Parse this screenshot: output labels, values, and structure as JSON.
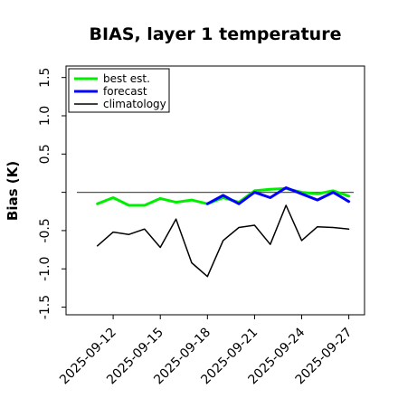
{
  "chart_data": {
    "type": "line",
    "title": "BIAS, layer 1 temperature",
    "ylabel": "Bias (K)",
    "xlabel": "",
    "ylim": [
      -1.6,
      1.65
    ],
    "yticks": [
      -1.5,
      -1.0,
      -0.5,
      0.0,
      0.5,
      1.0,
      1.5
    ],
    "ytick_labels": [
      "-1.5",
      "-1.0",
      "-0.5",
      "",
      "0.5",
      "1.0",
      "1.5"
    ],
    "xlim": [
      "2025-09-09",
      "2025-09-28"
    ],
    "xticks": [
      "2025-09-12",
      "2025-09-15",
      "2025-09-18",
      "2025-09-21",
      "2025-09-24",
      "2025-09-27"
    ],
    "xtick_labels": [
      "2025-09-12",
      "2025-09-15",
      "2025-09-18",
      "2025-09-21",
      "2025-09-24",
      "2025-09-27"
    ],
    "highlight_tick": {
      "label": "2025-09-18",
      "color": "#228b22"
    },
    "reference_line": {
      "y": 0.0,
      "color": "#555555"
    },
    "legend_position": "upper-left",
    "x": [
      "2025-09-11",
      "2025-09-12",
      "2025-09-13",
      "2025-09-14",
      "2025-09-15",
      "2025-09-16",
      "2025-09-17",
      "2025-09-18",
      "2025-09-19",
      "2025-09-20",
      "2025-09-21",
      "2025-09-22",
      "2025-09-23",
      "2025-09-24",
      "2025-09-25",
      "2025-09-26",
      "2025-09-27"
    ],
    "series": [
      {
        "name": "best est.",
        "color": "#00ee00",
        "width": 3,
        "values": [
          -0.15,
          -0.07,
          -0.17,
          -0.17,
          -0.08,
          -0.13,
          -0.1,
          -0.15,
          -0.07,
          -0.13,
          0.02,
          0.04,
          0.05,
          0.0,
          -0.02,
          0.02,
          -0.05
        ]
      },
      {
        "name": "forecast",
        "color": "#0000ff",
        "width": 3,
        "values": [
          null,
          null,
          null,
          null,
          null,
          null,
          null,
          -0.15,
          -0.04,
          -0.15,
          0.0,
          -0.07,
          0.06,
          -0.02,
          -0.1,
          0.0,
          -0.12
        ]
      },
      {
        "name": "climatology",
        "color": "#000000",
        "width": 1.5,
        "values": [
          -0.7,
          -0.52,
          -0.55,
          -0.48,
          -0.72,
          -0.35,
          -0.92,
          -1.1,
          -0.63,
          -0.46,
          -0.43,
          -0.68,
          -0.17,
          -0.63,
          -0.45,
          -0.46,
          -0.48
        ]
      }
    ]
  }
}
